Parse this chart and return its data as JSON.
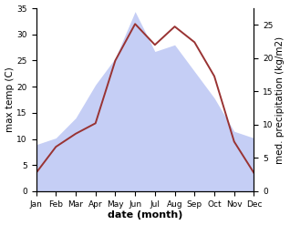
{
  "months": [
    "Jan",
    "Feb",
    "Mar",
    "Apr",
    "May",
    "Jun",
    "Jul",
    "Aug",
    "Sep",
    "Oct",
    "Nov",
    "Dec"
  ],
  "temp": [
    3.5,
    8.5,
    11.0,
    13.0,
    25.0,
    32.0,
    28.0,
    31.5,
    28.5,
    22.0,
    9.5,
    3.5
  ],
  "precip": [
    7.0,
    8.0,
    11.0,
    16.0,
    20.0,
    27.0,
    21.0,
    22.0,
    18.0,
    14.0,
    9.0,
    8.0
  ],
  "temp_color": "#993333",
  "precip_fill_color": "#c5cef5",
  "precip_edge_color": "#c5cef5",
  "temp_ylim": [
    0,
    35
  ],
  "precip_ylim": [
    0,
    27.5
  ],
  "xlabel": "date (month)",
  "ylabel_left": "max temp (C)",
  "ylabel_right": "med. precipitation (kg/m2)",
  "bg_color": "#ffffff",
  "tick_label_size": 6.5,
  "ylabel_size": 7.5,
  "xlabel_size": 8,
  "yticks_left": [
    0,
    5,
    10,
    15,
    20,
    25,
    30,
    35
  ],
  "yticks_right": [
    0,
    5,
    10,
    15,
    20,
    25
  ]
}
